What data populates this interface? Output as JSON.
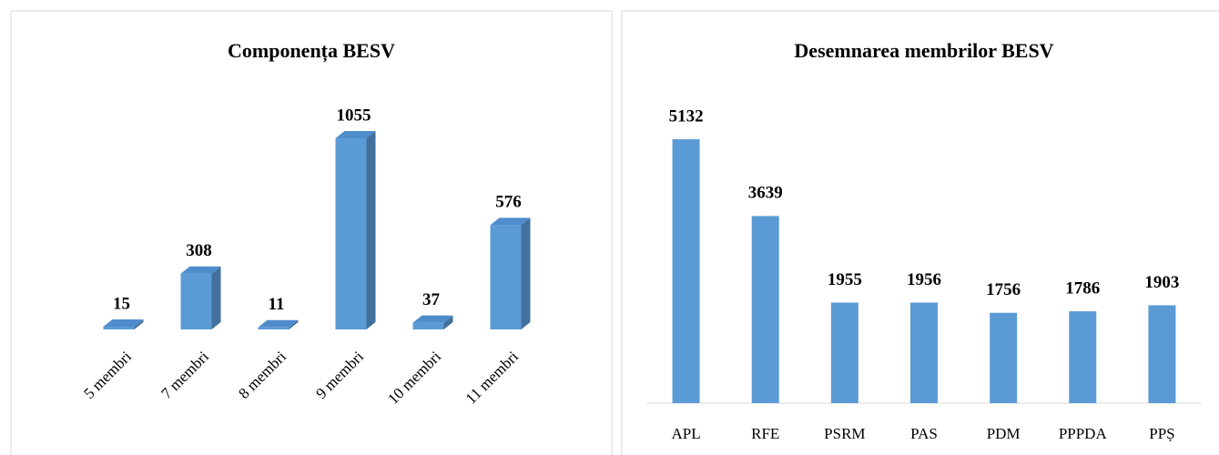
{
  "chart_data": [
    {
      "type": "bar3d",
      "title": "Componența BESV",
      "categories": [
        "5 membri",
        "7 membri",
        "8 membri",
        "9 membri",
        "10 membri",
        "11 membri"
      ],
      "values": [
        15,
        308,
        11,
        1055,
        37,
        576
      ],
      "color": "#5b9bd5"
    },
    {
      "type": "bar",
      "title": "Desemnarea membrilor BESV",
      "categories": [
        "APL",
        "RFE",
        "PSRM",
        "PAS",
        "PDM",
        "PPPDA",
        "PPȘ"
      ],
      "values": [
        5132,
        3639,
        1955,
        1956,
        1756,
        1786,
        1903
      ],
      "color": "#5b9bd5"
    }
  ]
}
